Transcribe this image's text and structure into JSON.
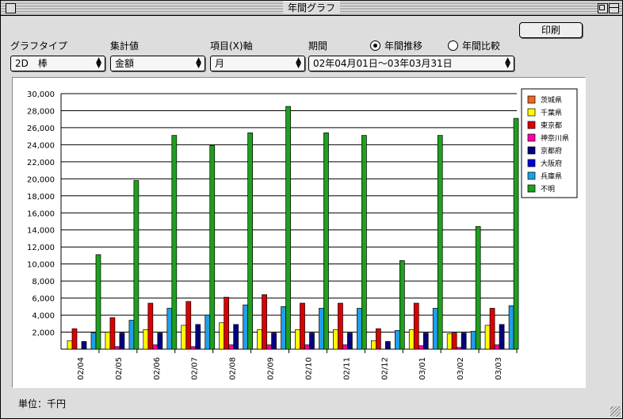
{
  "window": {
    "title": "年間グラフ"
  },
  "toolbar": {
    "print_label": "印刷"
  },
  "controls": {
    "graph_type_label": "グラフタイプ",
    "graph_type_value": "2D　棒",
    "agg_label": "集計値",
    "agg_value": "金額",
    "xaxis_label": "項目(X)軸",
    "xaxis_value": "月",
    "period_label": "期間",
    "period_value": "02年04月01日～03年03月31日",
    "radio_trend_label": "年間推移",
    "radio_compare_label": "年間比較",
    "radio_selected": "trend"
  },
  "footer": {
    "unit_label": "単位：千円"
  },
  "chart_data": {
    "type": "bar",
    "categories": [
      "02/04",
      "02/05",
      "02/06",
      "02/07",
      "02/08",
      "02/09",
      "02/10",
      "02/11",
      "02/12",
      "03/01",
      "03/02",
      "03/03"
    ],
    "ylim": [
      0,
      30000
    ],
    "yticks": [
      "2,000",
      "4,000",
      "6,000",
      "8,000",
      "10,000",
      "12,000",
      "14,000",
      "16,000",
      "18,000",
      "20,000",
      "22,000",
      "24,000",
      "26,000",
      "28,000",
      "30,000"
    ],
    "legend_position": "top-right",
    "grid": true,
    "series": [
      {
        "name": "茨城県",
        "color": "#f26522",
        "values": [
          0,
          0,
          0,
          0,
          0,
          0,
          0,
          0,
          0,
          0,
          0,
          0
        ]
      },
      {
        "name": "千葉県",
        "color": "#ffff00",
        "values": [
          1000,
          2000,
          2300,
          2800,
          3100,
          2300,
          2300,
          2300,
          1000,
          2300,
          1800,
          2800
        ]
      },
      {
        "name": "東京都",
        "color": "#dd0000",
        "values": [
          2400,
          3700,
          5400,
          5600,
          6100,
          6400,
          5400,
          5400,
          2400,
          5400,
          1900,
          4800
        ]
      },
      {
        "name": "神奈川県",
        "color": "#ff00aa",
        "values": [
          0,
          300,
          500,
          300,
          500,
          500,
          500,
          500,
          0,
          400,
          200,
          500
        ]
      },
      {
        "name": "京都府",
        "color": "#000080",
        "values": [
          900,
          1900,
          1900,
          2900,
          2900,
          1900,
          1900,
          1900,
          900,
          1900,
          1900,
          2900
        ]
      },
      {
        "name": "大阪府",
        "color": "#0000dd",
        "values": [
          0,
          0,
          0,
          0,
          0,
          0,
          0,
          0,
          0,
          0,
          0,
          0
        ]
      },
      {
        "name": "兵庫県",
        "color": "#1f9fe8",
        "values": [
          1900,
          3400,
          4800,
          4000,
          5200,
          5000,
          4800,
          4800,
          2200,
          4800,
          2100,
          5100
        ]
      },
      {
        "name": "不明",
        "color": "#1fa01f",
        "values": [
          11100,
          19800,
          25100,
          23900,
          25400,
          28500,
          25400,
          25100,
          10400,
          25100,
          14400,
          27100
        ]
      }
    ]
  }
}
